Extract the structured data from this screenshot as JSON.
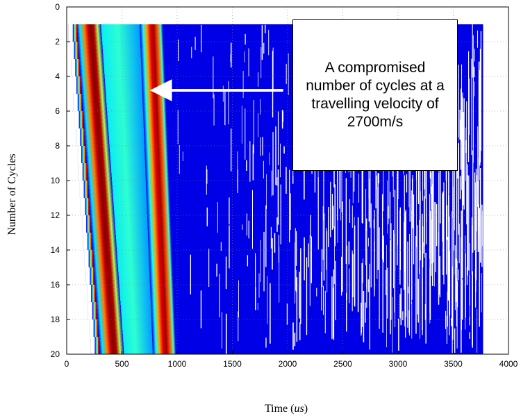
{
  "chart_data": {
    "type": "heatmap",
    "title": "",
    "xlabel_prefix": "Time (",
    "xlabel_unit": "us",
    "xlabel_suffix": ")",
    "ylabel": "Number of Cycles",
    "xlim": [
      0,
      4000
    ],
    "ylim": [
      0,
      20
    ],
    "y_reversed": true,
    "x_ticks": [
      0,
      500,
      1000,
      1500,
      2000,
      2500,
      3000,
      3500,
      4000
    ],
    "y_ticks": [
      0,
      2,
      4,
      6,
      8,
      10,
      12,
      14,
      16,
      18,
      20
    ],
    "grid": true,
    "colormap": "jet",
    "data_x_range": [
      0,
      3770
    ],
    "data_y_range": [
      1,
      20
    ],
    "bands": [
      {
        "start_y1": 90,
        "start_y20": 300,
        "width": 220
      },
      {
        "start_y1": 660,
        "start_y20": 780,
        "width": 210
      }
    ],
    "annotation": {
      "text": "A compromised number of cycles at a travelling velocity of 2700m/s",
      "arrow_tip": [
        740,
        4.8
      ],
      "arrow_tail": [
        1960,
        4.8
      ]
    }
  }
}
